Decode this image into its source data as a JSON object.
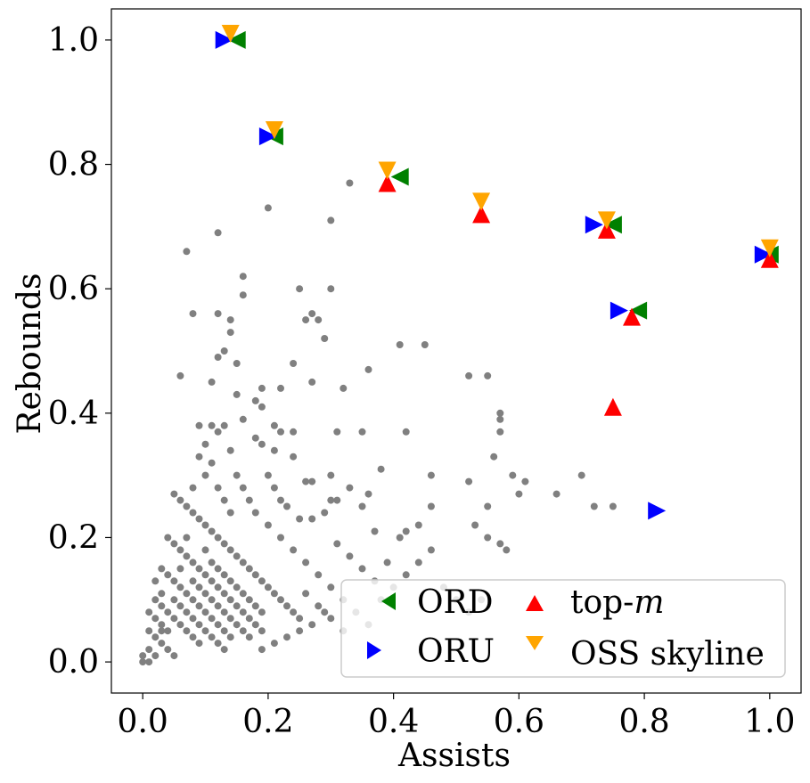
{
  "chart_data": {
    "type": "scatter",
    "xlabel": "Assists",
    "ylabel": "Rebounds",
    "xlim": [
      -0.05,
      1.05
    ],
    "ylim": [
      -0.05,
      1.05
    ],
    "xticks": [
      0.0,
      0.2,
      0.4,
      0.6,
      0.8,
      1.0
    ],
    "yticks": [
      0.0,
      0.2,
      0.4,
      0.6,
      0.8,
      1.0
    ],
    "xtick_labels": [
      "0.0",
      "0.2",
      "0.4",
      "0.6",
      "0.8",
      "1.0"
    ],
    "ytick_labels": [
      "0.0",
      "0.2",
      "0.4",
      "0.6",
      "0.8",
      "1.0"
    ],
    "grid": false,
    "legend_position": "bottom-right",
    "colors": {
      "background_points": "#808080",
      "ORD": "#008000",
      "ORU": "#0000ff",
      "top_m": "#ff0000",
      "OSS_skyline": "#ffa500"
    },
    "background_points": [
      [
        0.33,
        0.77
      ],
      [
        0.2,
        0.73
      ],
      [
        0.3,
        0.71
      ],
      [
        0.07,
        0.66
      ],
      [
        0.12,
        0.69
      ],
      [
        0.16,
        0.62
      ],
      [
        0.16,
        0.59
      ],
      [
        0.25,
        0.6
      ],
      [
        0.3,
        0.6
      ],
      [
        0.08,
        0.56
      ],
      [
        0.12,
        0.56
      ],
      [
        0.14,
        0.55
      ],
      [
        0.14,
        0.53
      ],
      [
        0.26,
        0.55
      ],
      [
        0.27,
        0.56
      ],
      [
        0.28,
        0.55
      ],
      [
        0.29,
        0.52
      ],
      [
        0.41,
        0.51
      ],
      [
        0.45,
        0.51
      ],
      [
        0.12,
        0.49
      ],
      [
        0.13,
        0.5
      ],
      [
        0.15,
        0.48
      ],
      [
        0.24,
        0.48
      ],
      [
        0.06,
        0.46
      ],
      [
        0.11,
        0.45
      ],
      [
        0.15,
        0.43
      ],
      [
        0.19,
        0.44
      ],
      [
        0.22,
        0.44
      ],
      [
        0.27,
        0.45
      ],
      [
        0.32,
        0.44
      ],
      [
        0.36,
        0.47
      ],
      [
        0.52,
        0.46
      ],
      [
        0.55,
        0.46
      ],
      [
        0.57,
        0.4
      ],
      [
        0.57,
        0.39
      ],
      [
        0.57,
        0.37
      ],
      [
        0.42,
        0.37
      ],
      [
        0.18,
        0.42
      ],
      [
        0.19,
        0.41
      ],
      [
        0.16,
        0.39
      ],
      [
        0.09,
        0.38
      ],
      [
        0.11,
        0.38
      ],
      [
        0.12,
        0.37
      ],
      [
        0.13,
        0.38
      ],
      [
        0.21,
        0.38
      ],
      [
        0.22,
        0.37
      ],
      [
        0.24,
        0.37
      ],
      [
        0.31,
        0.37
      ],
      [
        0.35,
        0.37
      ],
      [
        0.1,
        0.35
      ],
      [
        0.09,
        0.33
      ],
      [
        0.14,
        0.34
      ],
      [
        0.18,
        0.36
      ],
      [
        0.19,
        0.35
      ],
      [
        0.21,
        0.34
      ],
      [
        0.24,
        0.33
      ],
      [
        0.38,
        0.31
      ],
      [
        0.46,
        0.3
      ],
      [
        0.56,
        0.33
      ],
      [
        0.59,
        0.3
      ],
      [
        0.61,
        0.29
      ],
      [
        0.66,
        0.27
      ],
      [
        0.7,
        0.3
      ],
      [
        0.72,
        0.25
      ],
      [
        0.75,
        0.25
      ],
      [
        0.6,
        0.27
      ],
      [
        0.52,
        0.29
      ],
      [
        0.55,
        0.25
      ],
      [
        0.46,
        0.25
      ],
      [
        0.44,
        0.22
      ],
      [
        0.53,
        0.22
      ],
      [
        0.55,
        0.2
      ],
      [
        0.57,
        0.19
      ],
      [
        0.58,
        0.18
      ],
      [
        0.41,
        0.2
      ],
      [
        0.42,
        0.21
      ],
      [
        0.37,
        0.21
      ],
      [
        0.35,
        0.25
      ],
      [
        0.36,
        0.27
      ],
      [
        0.3,
        0.3
      ],
      [
        0.27,
        0.29
      ],
      [
        0.26,
        0.29
      ],
      [
        0.3,
        0.26
      ],
      [
        0.31,
        0.26
      ],
      [
        0.33,
        0.28
      ],
      [
        0.27,
        0.23
      ],
      [
        0.29,
        0.24
      ],
      [
        0.25,
        0.23
      ],
      [
        0.23,
        0.25
      ],
      [
        0.05,
        0.27
      ],
      [
        0.06,
        0.26
      ],
      [
        0.07,
        0.25
      ],
      [
        0.08,
        0.24
      ],
      [
        0.09,
        0.23
      ],
      [
        0.1,
        0.22
      ],
      [
        0.11,
        0.21
      ],
      [
        0.12,
        0.2
      ],
      [
        0.13,
        0.19
      ],
      [
        0.14,
        0.18
      ],
      [
        0.15,
        0.17
      ],
      [
        0.16,
        0.16
      ],
      [
        0.17,
        0.15
      ],
      [
        0.18,
        0.14
      ],
      [
        0.19,
        0.13
      ],
      [
        0.2,
        0.12
      ],
      [
        0.21,
        0.11
      ],
      [
        0.22,
        0.1
      ],
      [
        0.23,
        0.09
      ],
      [
        0.24,
        0.08
      ],
      [
        0.25,
        0.07
      ],
      [
        0.04,
        0.2
      ],
      [
        0.05,
        0.19
      ],
      [
        0.06,
        0.18
      ],
      [
        0.07,
        0.17
      ],
      [
        0.08,
        0.16
      ],
      [
        0.09,
        0.15
      ],
      [
        0.1,
        0.14
      ],
      [
        0.11,
        0.13
      ],
      [
        0.12,
        0.12
      ],
      [
        0.13,
        0.11
      ],
      [
        0.14,
        0.1
      ],
      [
        0.15,
        0.09
      ],
      [
        0.16,
        0.08
      ],
      [
        0.17,
        0.07
      ],
      [
        0.18,
        0.06
      ],
      [
        0.19,
        0.05
      ],
      [
        0.03,
        0.15
      ],
      [
        0.04,
        0.14
      ],
      [
        0.05,
        0.13
      ],
      [
        0.06,
        0.12
      ],
      [
        0.07,
        0.11
      ],
      [
        0.08,
        0.1
      ],
      [
        0.09,
        0.09
      ],
      [
        0.1,
        0.08
      ],
      [
        0.11,
        0.07
      ],
      [
        0.12,
        0.06
      ],
      [
        0.13,
        0.05
      ],
      [
        0.14,
        0.04
      ],
      [
        0.02,
        0.1
      ],
      [
        0.03,
        0.09
      ],
      [
        0.04,
        0.08
      ],
      [
        0.05,
        0.07
      ],
      [
        0.06,
        0.06
      ],
      [
        0.07,
        0.05
      ],
      [
        0.08,
        0.04
      ],
      [
        0.09,
        0.03
      ],
      [
        0.01,
        0.05
      ],
      [
        0.02,
        0.04
      ],
      [
        0.03,
        0.03
      ],
      [
        0.04,
        0.02
      ],
      [
        0.05,
        0.01
      ],
      [
        0.01,
        0.02
      ],
      [
        0.02,
        0.01
      ],
      [
        0.0,
        0.0
      ],
      [
        0.01,
        0.0
      ],
      [
        0.0,
        0.01
      ],
      [
        0.03,
        0.06
      ],
      [
        0.02,
        0.07
      ],
      [
        0.01,
        0.08
      ],
      [
        0.03,
        0.05
      ],
      [
        0.15,
        0.3
      ],
      [
        0.16,
        0.28
      ],
      [
        0.17,
        0.26
      ],
      [
        0.2,
        0.3
      ],
      [
        0.21,
        0.28
      ],
      [
        0.22,
        0.26
      ],
      [
        0.18,
        0.24
      ],
      [
        0.2,
        0.22
      ],
      [
        0.22,
        0.2
      ],
      [
        0.24,
        0.18
      ],
      [
        0.26,
        0.16
      ],
      [
        0.28,
        0.14
      ],
      [
        0.3,
        0.12
      ],
      [
        0.32,
        0.1
      ],
      [
        0.34,
        0.08
      ],
      [
        0.36,
        0.06
      ],
      [
        0.38,
        0.1
      ],
      [
        0.4,
        0.12
      ],
      [
        0.42,
        0.14
      ],
      [
        0.44,
        0.16
      ],
      [
        0.46,
        0.18
      ],
      [
        0.48,
        0.12
      ],
      [
        0.5,
        0.1
      ],
      [
        0.52,
        0.08
      ],
      [
        0.54,
        0.1
      ],
      [
        0.31,
        0.19
      ],
      [
        0.33,
        0.17
      ],
      [
        0.35,
        0.15
      ],
      [
        0.37,
        0.13
      ],
      [
        0.39,
        0.16
      ],
      [
        0.29,
        0.08
      ],
      [
        0.27,
        0.06
      ],
      [
        0.25,
        0.05
      ],
      [
        0.23,
        0.04
      ],
      [
        0.21,
        0.03
      ],
      [
        0.19,
        0.02
      ],
      [
        0.26,
        0.11
      ],
      [
        0.28,
        0.09
      ],
      [
        0.3,
        0.07
      ],
      [
        0.32,
        0.05
      ],
      [
        0.12,
        0.28
      ],
      [
        0.13,
        0.26
      ],
      [
        0.14,
        0.24
      ],
      [
        0.1,
        0.3
      ],
      [
        0.11,
        0.32
      ],
      [
        0.08,
        0.28
      ],
      [
        0.07,
        0.2
      ],
      [
        0.06,
        0.15
      ],
      [
        0.05,
        0.1
      ],
      [
        0.04,
        0.05
      ],
      [
        0.1,
        0.18
      ],
      [
        0.11,
        0.16
      ],
      [
        0.12,
        0.15
      ],
      [
        0.13,
        0.14
      ],
      [
        0.14,
        0.13
      ],
      [
        0.15,
        0.12
      ],
      [
        0.16,
        0.11
      ],
      [
        0.17,
        0.1
      ],
      [
        0.18,
        0.09
      ],
      [
        0.19,
        0.08
      ],
      [
        0.08,
        0.13
      ],
      [
        0.09,
        0.12
      ],
      [
        0.1,
        0.11
      ],
      [
        0.11,
        0.1
      ],
      [
        0.12,
        0.09
      ],
      [
        0.13,
        0.08
      ],
      [
        0.14,
        0.07
      ],
      [
        0.15,
        0.06
      ],
      [
        0.16,
        0.05
      ],
      [
        0.17,
        0.04
      ],
      [
        0.06,
        0.09
      ],
      [
        0.07,
        0.08
      ],
      [
        0.08,
        0.07
      ],
      [
        0.09,
        0.06
      ],
      [
        0.1,
        0.05
      ],
      [
        0.11,
        0.04
      ],
      [
        0.12,
        0.03
      ],
      [
        0.13,
        0.02
      ],
      [
        0.03,
        0.11
      ],
      [
        0.02,
        0.13
      ]
    ],
    "series": [
      {
        "name": "ORD",
        "marker": "triangle-left",
        "color": "#008000",
        "points": [
          [
            0.15,
            1.0
          ],
          [
            0.21,
            0.845
          ],
          [
            0.41,
            0.78
          ],
          [
            0.75,
            0.703
          ],
          [
            0.79,
            0.565
          ],
          [
            1.0,
            0.655
          ]
        ]
      },
      {
        "name": "ORU",
        "marker": "triangle-right",
        "color": "#0000ff",
        "points": [
          [
            0.13,
            1.0
          ],
          [
            0.2,
            0.845
          ],
          [
            0.72,
            0.703
          ],
          [
            0.76,
            0.565
          ],
          [
            0.99,
            0.655
          ],
          [
            0.82,
            0.243
          ]
        ]
      },
      {
        "name": "top-m",
        "marker": "triangle-up",
        "color": "#ff0000",
        "points": [
          [
            0.39,
            0.77
          ],
          [
            0.54,
            0.72
          ],
          [
            0.74,
            0.695
          ],
          [
            0.78,
            0.555
          ],
          [
            1.0,
            0.648
          ],
          [
            0.75,
            0.41
          ]
        ]
      },
      {
        "name": "OSS skyline",
        "marker": "triangle-down",
        "color": "#ffa500",
        "points": [
          [
            0.14,
            1.01
          ],
          [
            0.21,
            0.855
          ],
          [
            0.39,
            0.79
          ],
          [
            0.54,
            0.74
          ],
          [
            0.74,
            0.71
          ],
          [
            1.0,
            0.665
          ]
        ]
      }
    ],
    "legend": {
      "ord": "ORD",
      "oru": "ORU",
      "topm_prefix": "top-",
      "topm_italic": "m",
      "oss": "OSS skyline"
    }
  }
}
